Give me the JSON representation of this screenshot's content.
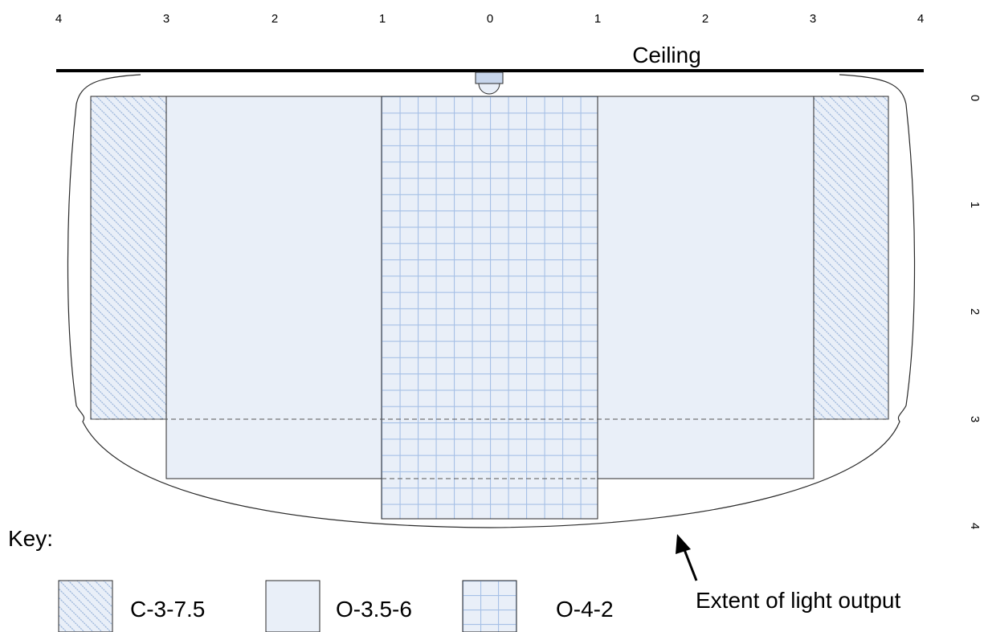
{
  "diagram": {
    "top_scale": [
      "4",
      "3",
      "2",
      "1",
      "0",
      "1",
      "2",
      "3",
      "4"
    ],
    "side_scale": [
      "0",
      "1",
      "2",
      "3",
      "4"
    ],
    "ceiling_label": "Ceiling",
    "callout_label": "Extent of light output",
    "key_title": "Key:",
    "key_items": [
      {
        "label": "C-3-7.5",
        "pattern": "diagonal-hatch"
      },
      {
        "label": "O-3.5-6",
        "pattern": "solid"
      },
      {
        "label": "O-4-2",
        "pattern": "grid"
      }
    ],
    "colors": {
      "fill": "#e9eff8",
      "hatch": "#9fb8dc",
      "grid": "#a6c0e6",
      "outline": "#2a2a2a"
    }
  }
}
